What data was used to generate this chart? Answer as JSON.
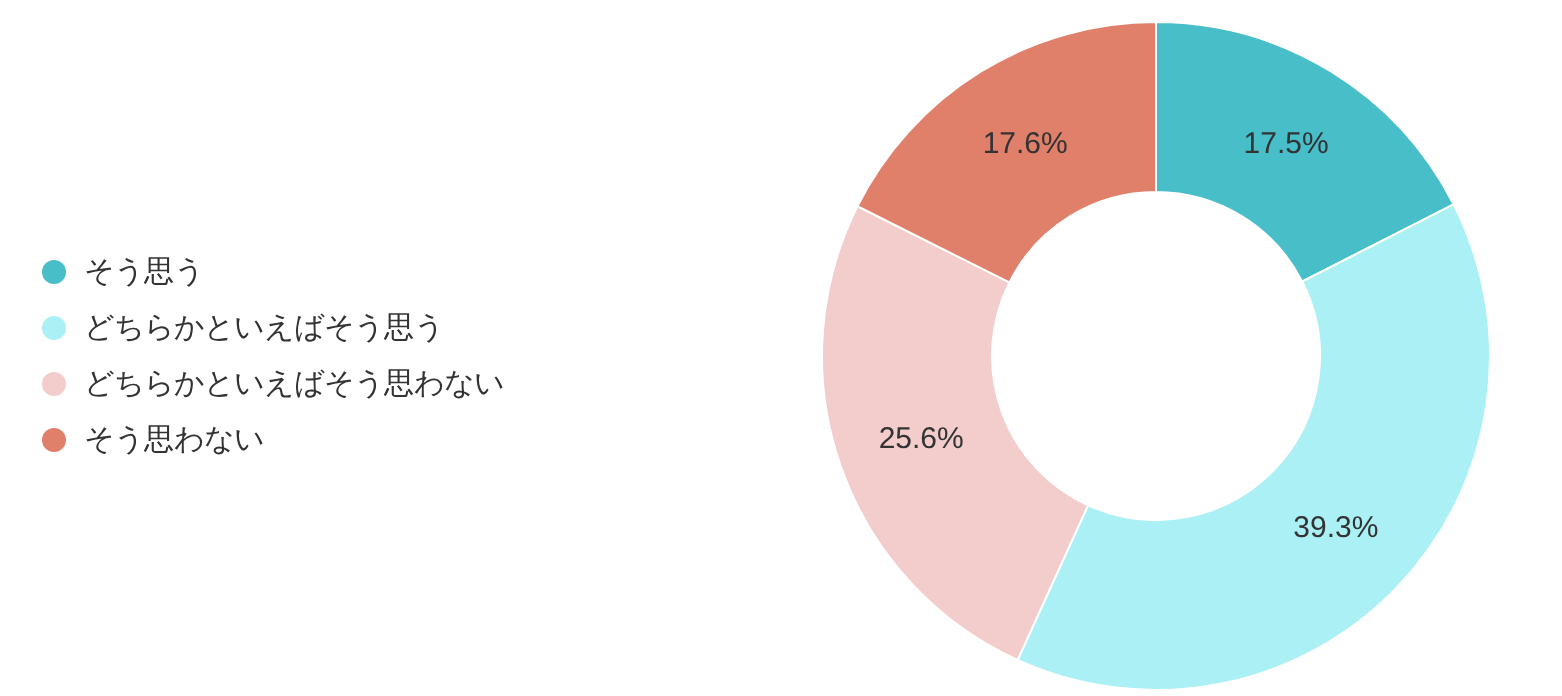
{
  "chart_data": {
    "type": "donut",
    "categories": [
      "そう思う",
      "どちらかといえばそう思う",
      "どちらかといえばそう思わない",
      "そう思わない"
    ],
    "values": [
      17.5,
      39.3,
      25.6,
      17.6
    ],
    "value_labels": [
      "17.5%",
      "39.3%",
      "25.6%",
      "17.6%"
    ],
    "colors": [
      "#48bec9",
      "#aaf0f5",
      "#f3cccc",
      "#e07f6a"
    ],
    "legend": "left"
  }
}
